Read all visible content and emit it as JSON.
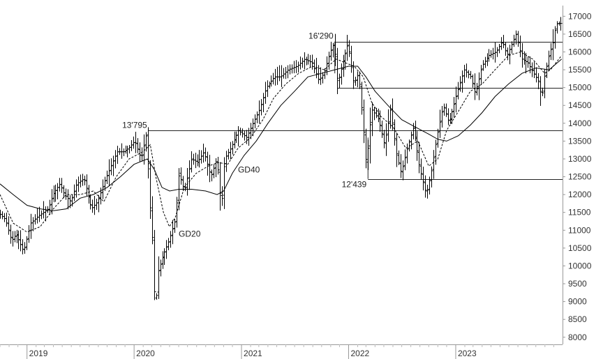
{
  "chart_data": {
    "type": "ohlc",
    "title": "",
    "xlabel": "",
    "ylabel": "",
    "ylim": [
      7800,
      17300
    ],
    "xlim": [
      "2018-10-01",
      "2023-12-31"
    ],
    "y_ticks": [
      8000,
      8500,
      9000,
      9500,
      10000,
      10500,
      11000,
      11500,
      12000,
      12500,
      13000,
      13500,
      14000,
      14500,
      15000,
      15500,
      16000,
      16500,
      17000
    ],
    "x_ticks": [
      {
        "date": "2019-01-01",
        "label": "2019"
      },
      {
        "date": "2020-01-01",
        "label": "2020"
      },
      {
        "date": "2021-01-01",
        "label": "2021"
      },
      {
        "date": "2022-01-01",
        "label": "2022"
      },
      {
        "date": "2023-01-01",
        "label": "2023"
      }
    ],
    "grid": false,
    "price_path": [
      [
        "2018-10-01",
        11500
      ],
      [
        "2018-10-25",
        11300
      ],
      [
        "2018-11-15",
        10700
      ],
      [
        "2018-12-01",
        10900
      ],
      [
        "2018-12-27",
        10400
      ],
      [
        "2019-01-20",
        11200
      ],
      [
        "2019-02-15",
        11400
      ],
      [
        "2019-03-20",
        11600
      ],
      [
        "2019-04-05",
        12000
      ],
      [
        "2019-04-30",
        12300
      ],
      [
        "2019-05-15",
        12000
      ],
      [
        "2019-06-05",
        11800
      ],
      [
        "2019-06-25",
        12300
      ],
      [
        "2019-07-20",
        12450
      ],
      [
        "2019-08-15",
        11600
      ],
      [
        "2019-09-05",
        11800
      ],
      [
        "2019-09-30",
        12400
      ],
      [
        "2019-10-20",
        12800
      ],
      [
        "2019-11-10",
        13200
      ],
      [
        "2019-12-01",
        13200
      ],
      [
        "2019-12-20",
        13300
      ],
      [
        "2020-01-10",
        13500
      ],
      [
        "2020-01-31",
        13000
      ],
      [
        "2020-02-19",
        13750
      ],
      [
        "2020-02-28",
        11900
      ],
      [
        "2020-03-10",
        10600
      ],
      [
        "2020-03-18",
        8600
      ],
      [
        "2020-03-27",
        9800
      ],
      [
        "2020-04-15",
        10300
      ],
      [
        "2020-05-05",
        10700
      ],
      [
        "2020-05-27",
        11300
      ],
      [
        "2020-06-08",
        12600
      ],
      [
        "2020-06-26",
        12100
      ],
      [
        "2020-07-20",
        13000
      ],
      [
        "2020-08-10",
        12900
      ],
      [
        "2020-09-02",
        13200
      ],
      [
        "2020-09-25",
        12500
      ],
      [
        "2020-10-15",
        13000
      ],
      [
        "2020-10-30",
        11600
      ],
      [
        "2020-11-10",
        13000
      ],
      [
        "2020-12-01",
        13300
      ],
      [
        "2020-12-28",
        13800
      ],
      [
        "2021-01-25",
        13600
      ],
      [
        "2021-02-15",
        14000
      ],
      [
        "2021-03-10",
        14400
      ],
      [
        "2021-04-01",
        15000
      ],
      [
        "2021-04-30",
        15300
      ],
      [
        "2021-05-20",
        15300
      ],
      [
        "2021-06-15",
        15500
      ],
      [
        "2021-07-15",
        15600
      ],
      [
        "2021-08-10",
        15800
      ],
      [
        "2021-09-05",
        15700
      ],
      [
        "2021-09-28",
        15200
      ],
      [
        "2021-10-15",
        15400
      ],
      [
        "2021-11-05",
        16000
      ],
      [
        "2021-11-18",
        16250
      ],
      [
        "2021-11-30",
        15100
      ],
      [
        "2021-12-15",
        15600
      ],
      [
        "2022-01-05",
        16250
      ],
      [
        "2022-01-25",
        15100
      ],
      [
        "2022-02-10",
        15400
      ],
      [
        "2022-02-25",
        14000
      ],
      [
        "2022-03-08",
        12800
      ],
      [
        "2022-03-25",
        14400
      ],
      [
        "2022-04-20",
        14100
      ],
      [
        "2022-05-10",
        13400
      ],
      [
        "2022-05-30",
        14400
      ],
      [
        "2022-06-20",
        13100
      ],
      [
        "2022-07-05",
        12600
      ],
      [
        "2022-07-25",
        13300
      ],
      [
        "2022-08-16",
        13900
      ],
      [
        "2022-09-05",
        12800
      ],
      [
        "2022-09-29",
        12000
      ],
      [
        "2022-10-15",
        12600
      ],
      [
        "2022-11-05",
        13700
      ],
      [
        "2022-11-25",
        14500
      ],
      [
        "2022-12-15",
        14000
      ],
      [
        "2023-01-10",
        14800
      ],
      [
        "2023-02-05",
        15500
      ],
      [
        "2023-02-28",
        15300
      ],
      [
        "2023-03-15",
        14800
      ],
      [
        "2023-04-05",
        15600
      ],
      [
        "2023-04-30",
        15900
      ],
      [
        "2023-05-25",
        16000
      ],
      [
        "2023-06-15",
        16300
      ],
      [
        "2023-07-01",
        15900
      ],
      [
        "2023-07-31",
        16500
      ],
      [
        "2023-08-20",
        15800
      ],
      [
        "2023-09-10",
        15700
      ],
      [
        "2023-09-30",
        15400
      ],
      [
        "2023-10-15",
        15200
      ],
      [
        "2023-10-27",
        14700
      ],
      [
        "2023-11-05",
        15300
      ],
      [
        "2023-11-20",
        15900
      ],
      [
        "2023-12-05",
        16300
      ],
      [
        "2023-12-12",
        16700
      ],
      [
        "2023-12-18",
        16800
      ],
      [
        "2023-12-28",
        16800
      ]
    ],
    "gd20": [
      [
        "2018-10-01",
        12000
      ],
      [
        "2018-11-15",
        11200
      ],
      [
        "2019-01-01",
        10950
      ],
      [
        "2019-02-15",
        11100
      ],
      [
        "2019-04-01",
        11600
      ],
      [
        "2019-05-15",
        12000
      ],
      [
        "2019-07-01",
        12000
      ],
      [
        "2019-08-15",
        12100
      ],
      [
        "2019-09-20",
        11800
      ],
      [
        "2019-11-01",
        12500
      ],
      [
        "2019-12-15",
        13000
      ],
      [
        "2020-01-31",
        13200
      ],
      [
        "2020-02-25",
        13400
      ],
      [
        "2020-03-15",
        12500
      ],
      [
        "2020-04-10",
        11500
      ],
      [
        "2020-04-30",
        11100
      ],
      [
        "2020-05-20",
        11350
      ],
      [
        "2020-06-20",
        12200
      ],
      [
        "2020-07-31",
        12600
      ],
      [
        "2020-09-10",
        12800
      ],
      [
        "2020-10-15",
        12900
      ],
      [
        "2020-11-15",
        12850
      ],
      [
        "2020-12-20",
        13300
      ],
      [
        "2021-02-01",
        13600
      ],
      [
        "2021-03-15",
        14100
      ],
      [
        "2021-04-20",
        14700
      ],
      [
        "2021-06-01",
        15100
      ],
      [
        "2021-07-15",
        15400
      ],
      [
        "2021-08-31",
        15600
      ],
      [
        "2021-10-10",
        15500
      ],
      [
        "2021-11-20",
        15800
      ],
      [
        "2021-12-20",
        15700
      ],
      [
        "2022-01-20",
        15600
      ],
      [
        "2022-02-20",
        15300
      ],
      [
        "2022-03-20",
        14600
      ],
      [
        "2022-04-20",
        14200
      ],
      [
        "2022-06-01",
        13900
      ],
      [
        "2022-07-15",
        13300
      ],
      [
        "2022-08-25",
        13500
      ],
      [
        "2022-10-01",
        12800
      ],
      [
        "2022-11-01",
        13000
      ],
      [
        "2022-12-01",
        13800
      ],
      [
        "2023-01-15",
        14400
      ],
      [
        "2023-02-20",
        14900
      ],
      [
        "2023-04-01",
        15100
      ],
      [
        "2023-05-15",
        15500
      ],
      [
        "2023-06-30",
        15900
      ],
      [
        "2023-08-10",
        16000
      ],
      [
        "2023-09-20",
        15800
      ],
      [
        "2023-10-31",
        15400
      ],
      [
        "2023-11-20",
        15500
      ],
      [
        "2023-12-28",
        15900
      ]
    ],
    "gd40": [
      [
        "2018-10-01",
        12300
      ],
      [
        "2018-11-15",
        12000
      ],
      [
        "2019-01-01",
        11700
      ],
      [
        "2019-02-15",
        11600
      ],
      [
        "2019-04-01",
        11550
      ],
      [
        "2019-05-15",
        11600
      ],
      [
        "2019-07-01",
        11900
      ],
      [
        "2019-08-15",
        12000
      ],
      [
        "2019-10-01",
        12200
      ],
      [
        "2019-11-15",
        12500
      ],
      [
        "2020-01-01",
        12850
      ],
      [
        "2020-02-15",
        13000
      ],
      [
        "2020-03-10",
        12700
      ],
      [
        "2020-04-05",
        12200
      ],
      [
        "2020-05-01",
        12100
      ],
      [
        "2020-06-01",
        12150
      ],
      [
        "2020-07-15",
        12150
      ],
      [
        "2020-09-01",
        12100
      ],
      [
        "2020-10-10",
        12000
      ],
      [
        "2020-11-01",
        12100
      ],
      [
        "2020-12-01",
        12600
      ],
      [
        "2021-01-10",
        13100
      ],
      [
        "2021-02-20",
        13500
      ],
      [
        "2021-04-01",
        14000
      ],
      [
        "2021-05-15",
        14500
      ],
      [
        "2021-07-01",
        14900
      ],
      [
        "2021-08-15",
        15300
      ],
      [
        "2021-10-01",
        15400
      ],
      [
        "2021-11-15",
        15500
      ],
      [
        "2022-01-01",
        15600
      ],
      [
        "2022-02-01",
        15600
      ],
      [
        "2022-03-01",
        15300
      ],
      [
        "2022-04-01",
        14900
      ],
      [
        "2022-05-15",
        14500
      ],
      [
        "2022-07-01",
        14100
      ],
      [
        "2022-08-15",
        13900
      ],
      [
        "2022-09-30",
        13700
      ],
      [
        "2022-11-01",
        13550
      ],
      [
        "2022-12-01",
        13500
      ],
      [
        "2023-01-10",
        13650
      ],
      [
        "2023-02-20",
        13950
      ],
      [
        "2023-04-01",
        14300
      ],
      [
        "2023-05-15",
        14750
      ],
      [
        "2023-06-30",
        15100
      ],
      [
        "2023-08-15",
        15400
      ],
      [
        "2023-10-01",
        15550
      ],
      [
        "2023-11-15",
        15500
      ],
      [
        "2023-12-28",
        15800
      ]
    ],
    "hlines": [
      {
        "value": 16290,
        "from": "2021-11-15",
        "to": "2023-12-31",
        "label": "16'290"
      },
      {
        "value": 15000,
        "from": "2021-11-25",
        "to": "2023-12-31",
        "label": ""
      },
      {
        "value": 13795,
        "from": "2020-02-19",
        "to": "2023-12-31",
        "label": "13'795"
      },
      {
        "value": 12439,
        "from": "2022-03-08",
        "to": "2023-12-31",
        "label": "12'439"
      }
    ],
    "annotations": [
      {
        "text": "GD20",
        "date": "2020-06-01",
        "value": 10900
      },
      {
        "text": "GD40",
        "date": "2020-12-20",
        "value": 12700
      }
    ]
  }
}
